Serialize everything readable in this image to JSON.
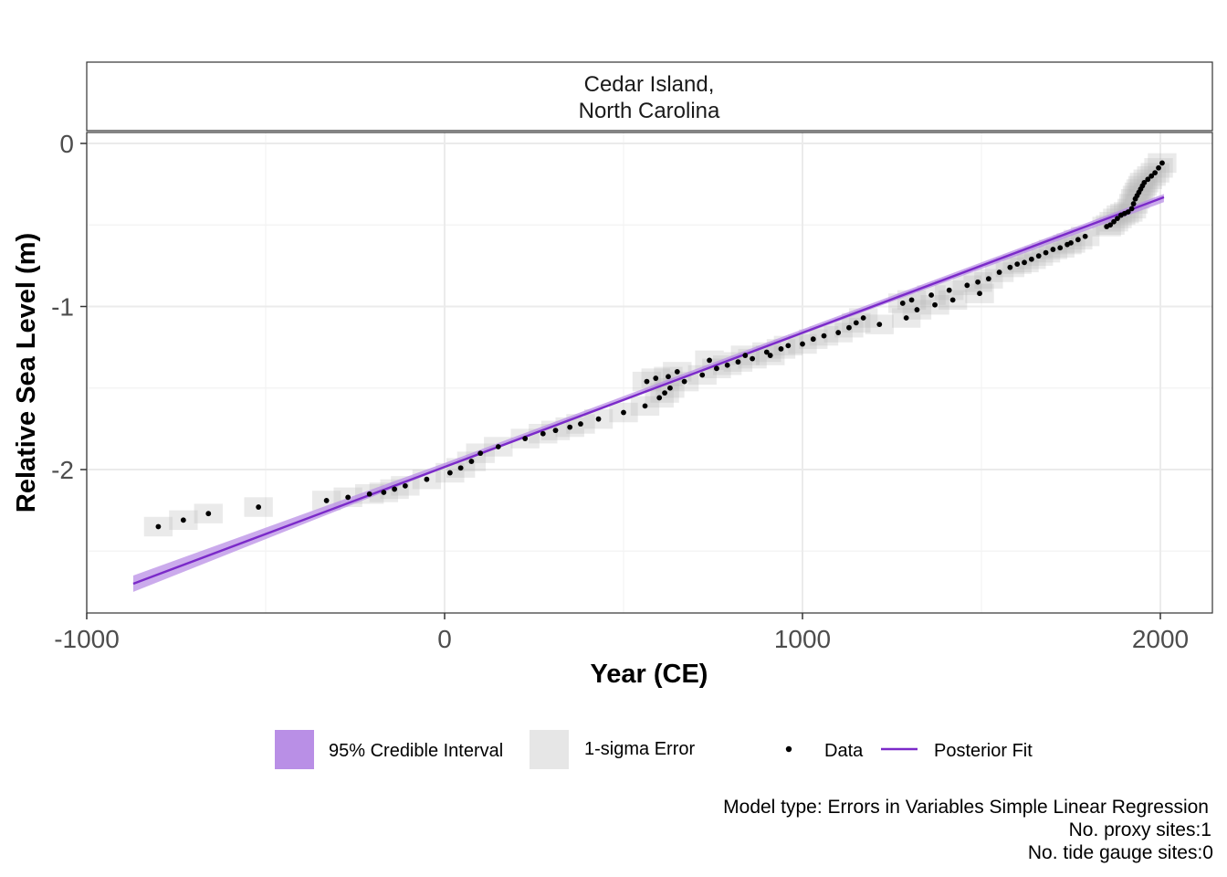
{
  "chart_data": {
    "type": "scatter",
    "facet_title_lines": [
      "Cedar Island,",
      "North Carolina"
    ],
    "xlabel": "Year (CE)",
    "ylabel": "Relative Sea Level (m)",
    "xlim": [
      -1000,
      2150
    ],
    "ylim": [
      -2.85,
      0.07
    ],
    "x_ticks": [
      -1000,
      0,
      1000,
      2000
    ],
    "x_tick_labels": [
      "-1000",
      "0",
      "1000",
      "2000"
    ],
    "y_ticks": [
      0,
      -1,
      -2
    ],
    "y_tick_labels": [
      "0",
      "-1",
      "-2"
    ],
    "grid": true,
    "legend_position": "bottom",
    "legend": [
      {
        "key": "ci",
        "label": "95% Credible Interval",
        "color": "#b98fe6"
      },
      {
        "key": "err",
        "label": "1-sigma Error",
        "color": "#e6e6e6"
      },
      {
        "key": "data",
        "label": "Data",
        "color": "#000000"
      },
      {
        "key": "fit",
        "label": "Posterior Fit",
        "color": "#7b2ac9"
      }
    ],
    "caption_lines": [
      "Model type: Errors in Variables Simple Linear Regression",
      "No. proxy sites:1",
      "No. tide gauge sites:0"
    ],
    "fit_line": {
      "x": [
        -870,
        2010
      ],
      "y": [
        -2.7,
        -0.33
      ]
    },
    "credible_interval": {
      "x": [
        -870,
        0,
        1000,
        2010
      ],
      "lower": [
        -2.75,
        -1.99,
        -1.17,
        -0.36
      ],
      "upper": [
        -2.65,
        -1.96,
        -1.14,
        -0.31
      ]
    },
    "error_half_width": {
      "x": 40,
      "y": 0.06
    },
    "series": [
      {
        "name": "Data",
        "points": [
          [
            -800,
            -2.35
          ],
          [
            -730,
            -2.31
          ],
          [
            -660,
            -2.27
          ],
          [
            -520,
            -2.23
          ],
          [
            -330,
            -2.19
          ],
          [
            -270,
            -2.17
          ],
          [
            -210,
            -2.15
          ],
          [
            -170,
            -2.14
          ],
          [
            -140,
            -2.12
          ],
          [
            -110,
            -2.1
          ],
          [
            -50,
            -2.06
          ],
          [
            15,
            -2.02
          ],
          [
            45,
            -1.99
          ],
          [
            75,
            -1.95
          ],
          [
            100,
            -1.9
          ],
          [
            150,
            -1.86
          ],
          [
            225,
            -1.81
          ],
          [
            275,
            -1.78
          ],
          [
            310,
            -1.76
          ],
          [
            350,
            -1.74
          ],
          [
            380,
            -1.72
          ],
          [
            430,
            -1.69
          ],
          [
            500,
            -1.65
          ],
          [
            560,
            -1.61
          ],
          [
            565,
            -1.46
          ],
          [
            590,
            -1.44
          ],
          [
            600,
            -1.56
          ],
          [
            615,
            -1.53
          ],
          [
            625,
            -1.43
          ],
          [
            630,
            -1.5
          ],
          [
            650,
            -1.4
          ],
          [
            670,
            -1.46
          ],
          [
            720,
            -1.42
          ],
          [
            740,
            -1.33
          ],
          [
            760,
            -1.38
          ],
          [
            790,
            -1.36
          ],
          [
            820,
            -1.34
          ],
          [
            840,
            -1.3
          ],
          [
            860,
            -1.32
          ],
          [
            900,
            -1.28
          ],
          [
            910,
            -1.3
          ],
          [
            940,
            -1.26
          ],
          [
            960,
            -1.24
          ],
          [
            1000,
            -1.23
          ],
          [
            1030,
            -1.2
          ],
          [
            1060,
            -1.18
          ],
          [
            1100,
            -1.16
          ],
          [
            1130,
            -1.13
          ],
          [
            1150,
            -1.1
          ],
          [
            1170,
            -1.07
          ],
          [
            1215,
            -1.11
          ],
          [
            1280,
            -0.98
          ],
          [
            1290,
            -1.07
          ],
          [
            1305,
            -0.96
          ],
          [
            1320,
            -1.02
          ],
          [
            1360,
            -0.93
          ],
          [
            1370,
            -0.99
          ],
          [
            1410,
            -0.9
          ],
          [
            1420,
            -0.96
          ],
          [
            1460,
            -0.87
          ],
          [
            1490,
            -0.85
          ],
          [
            1495,
            -0.92
          ],
          [
            1520,
            -0.83
          ],
          [
            1550,
            -0.79
          ],
          [
            1580,
            -0.76
          ],
          [
            1600,
            -0.74
          ],
          [
            1620,
            -0.73
          ],
          [
            1640,
            -0.71
          ],
          [
            1660,
            -0.69
          ],
          [
            1680,
            -0.67
          ],
          [
            1700,
            -0.65
          ],
          [
            1720,
            -0.64
          ],
          [
            1740,
            -0.62
          ],
          [
            1750,
            -0.61
          ],
          [
            1770,
            -0.59
          ],
          [
            1790,
            -0.57
          ],
          [
            1850,
            -0.51
          ],
          [
            1860,
            -0.5
          ],
          [
            1870,
            -0.48
          ],
          [
            1880,
            -0.46
          ],
          [
            1890,
            -0.44
          ],
          [
            1900,
            -0.43
          ],
          [
            1910,
            -0.42
          ],
          [
            1920,
            -0.4
          ],
          [
            1925,
            -0.37
          ],
          [
            1930,
            -0.34
          ],
          [
            1935,
            -0.32
          ],
          [
            1940,
            -0.3
          ],
          [
            1945,
            -0.28
          ],
          [
            1950,
            -0.26
          ],
          [
            1955,
            -0.24
          ],
          [
            1965,
            -0.22
          ],
          [
            1975,
            -0.2
          ],
          [
            1985,
            -0.18
          ],
          [
            1995,
            -0.15
          ],
          [
            2005,
            -0.12
          ]
        ]
      }
    ]
  }
}
